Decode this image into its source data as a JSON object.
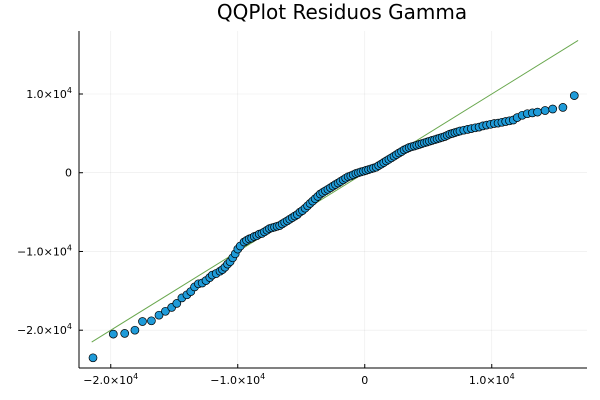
{
  "chart_data": {
    "type": "scatter",
    "title": "QQPlot Residuos Gamma",
    "xlabel": "",
    "ylabel": "",
    "xlim": [
      -22500,
      17500
    ],
    "ylim": [
      -24800,
      18000
    ],
    "grid": true,
    "legend": "none",
    "x_ticks": [
      {
        "value": -20000,
        "base": "−2.0×10",
        "exp": "4"
      },
      {
        "value": -10000,
        "base": "−1.0×10",
        "exp": "4"
      },
      {
        "value": 0,
        "base": "0",
        "exp": ""
      },
      {
        "value": 10000,
        "base": "1.0×10",
        "exp": "4"
      }
    ],
    "y_ticks": [
      {
        "value": -20000,
        "base": "−2.0×10",
        "exp": "4"
      },
      {
        "value": -10000,
        "base": "−1.0×10",
        "exp": "4"
      },
      {
        "value": 0,
        "base": "0",
        "exp": ""
      },
      {
        "value": 10000,
        "base": "1.0×10",
        "exp": "4"
      }
    ],
    "reference_line": {
      "x": [
        -21500,
        16800
      ],
      "y": [
        -21500,
        16800
      ],
      "color": "#6aa84f"
    },
    "series": [
      {
        "color": "#1f9bd9",
        "points": [
          [
            -21400,
            -23500
          ],
          [
            -19800,
            -20500
          ],
          [
            -18900,
            -20400
          ],
          [
            -18100,
            -20000
          ],
          [
            -17500,
            -18900
          ],
          [
            -16800,
            -18800
          ],
          [
            -16200,
            -18100
          ],
          [
            -15700,
            -17600
          ],
          [
            -15200,
            -17100
          ],
          [
            -14800,
            -16600
          ],
          [
            -14400,
            -15900
          ],
          [
            -14000,
            -15500
          ],
          [
            -13700,
            -15100
          ],
          [
            -13400,
            -14500
          ],
          [
            -13100,
            -14100
          ],
          [
            -12800,
            -14000
          ],
          [
            -12500,
            -13700
          ],
          [
            -12200,
            -13300
          ],
          [
            -12000,
            -13000
          ],
          [
            -11700,
            -12800
          ],
          [
            -11400,
            -12500
          ],
          [
            -11200,
            -12300
          ],
          [
            -11000,
            -12000
          ],
          [
            -10800,
            -11600
          ],
          [
            -10600,
            -11300
          ],
          [
            -10400,
            -10800
          ],
          [
            -10200,
            -10300
          ],
          [
            -10000,
            -9700
          ],
          [
            -9800,
            -9300
          ],
          [
            -9500,
            -8800
          ],
          [
            -9300,
            -8600
          ],
          [
            -9100,
            -8400
          ],
          [
            -8900,
            -8300
          ],
          [
            -8700,
            -8100
          ],
          [
            -8500,
            -8000
          ],
          [
            -8300,
            -7800
          ],
          [
            -8100,
            -7700
          ],
          [
            -7900,
            -7500
          ],
          [
            -7700,
            -7300
          ],
          [
            -7500,
            -7100
          ],
          [
            -7300,
            -7000
          ],
          [
            -7100,
            -6900
          ],
          [
            -6900,
            -6800
          ],
          [
            -6700,
            -6700
          ],
          [
            -6500,
            -6500
          ],
          [
            -6300,
            -6300
          ],
          [
            -6100,
            -6100
          ],
          [
            -5900,
            -5900
          ],
          [
            -5700,
            -5700
          ],
          [
            -5500,
            -5500
          ],
          [
            -5300,
            -5300
          ],
          [
            -5100,
            -5000
          ],
          [
            -4900,
            -4800
          ],
          [
            -4700,
            -4500
          ],
          [
            -4500,
            -4200
          ],
          [
            -4300,
            -3900
          ],
          [
            -4100,
            -3600
          ],
          [
            -3900,
            -3300
          ],
          [
            -3700,
            -3000
          ],
          [
            -3500,
            -2700
          ],
          [
            -3300,
            -2500
          ],
          [
            -3100,
            -2300
          ],
          [
            -2900,
            -2100
          ],
          [
            -2700,
            -1900
          ],
          [
            -2500,
            -1700
          ],
          [
            -2300,
            -1500
          ],
          [
            -2100,
            -1300
          ],
          [
            -1900,
            -1100
          ],
          [
            -1700,
            -900
          ],
          [
            -1500,
            -700
          ],
          [
            -1300,
            -500
          ],
          [
            -1100,
            -400
          ],
          [
            -900,
            -250
          ],
          [
            -700,
            -100
          ],
          [
            -500,
            0
          ],
          [
            -300,
            100
          ],
          [
            -100,
            200
          ],
          [
            100,
            300
          ],
          [
            300,
            400
          ],
          [
            500,
            500
          ],
          [
            700,
            600
          ],
          [
            900,
            700
          ],
          [
            1100,
            900
          ],
          [
            1300,
            1100
          ],
          [
            1500,
            1300
          ],
          [
            1700,
            1500
          ],
          [
            1900,
            1700
          ],
          [
            2100,
            1900
          ],
          [
            2300,
            2100
          ],
          [
            2500,
            2300
          ],
          [
            2700,
            2500
          ],
          [
            2900,
            2700
          ],
          [
            3100,
            2900
          ],
          [
            3300,
            3050
          ],
          [
            3500,
            3200
          ],
          [
            3700,
            3300
          ],
          [
            3900,
            3400
          ],
          [
            4100,
            3500
          ],
          [
            4300,
            3600
          ],
          [
            4500,
            3700
          ],
          [
            4700,
            3800
          ],
          [
            4900,
            3900
          ],
          [
            5100,
            4000
          ],
          [
            5300,
            4100
          ],
          [
            5500,
            4200
          ],
          [
            5700,
            4300
          ],
          [
            5900,
            4400
          ],
          [
            6100,
            4500
          ],
          [
            6300,
            4600
          ],
          [
            6500,
            4750
          ],
          [
            6700,
            4900
          ],
          [
            6900,
            5000
          ],
          [
            7100,
            5100
          ],
          [
            7300,
            5200
          ],
          [
            7500,
            5300
          ],
          [
            7800,
            5400
          ],
          [
            8100,
            5500
          ],
          [
            8400,
            5600
          ],
          [
            8700,
            5700
          ],
          [
            9000,
            5800
          ],
          [
            9300,
            5950
          ],
          [
            9600,
            6050
          ],
          [
            9900,
            6150
          ],
          [
            10200,
            6250
          ],
          [
            10500,
            6300
          ],
          [
            10800,
            6400
          ],
          [
            11100,
            6500
          ],
          [
            11400,
            6600
          ],
          [
            11700,
            6700
          ],
          [
            12000,
            7000
          ],
          [
            12400,
            7300
          ],
          [
            12800,
            7500
          ],
          [
            13200,
            7600
          ],
          [
            13600,
            7700
          ],
          [
            14200,
            7900
          ],
          [
            14800,
            8100
          ],
          [
            15600,
            8300
          ],
          [
            16500,
            9800
          ]
        ]
      }
    ]
  }
}
